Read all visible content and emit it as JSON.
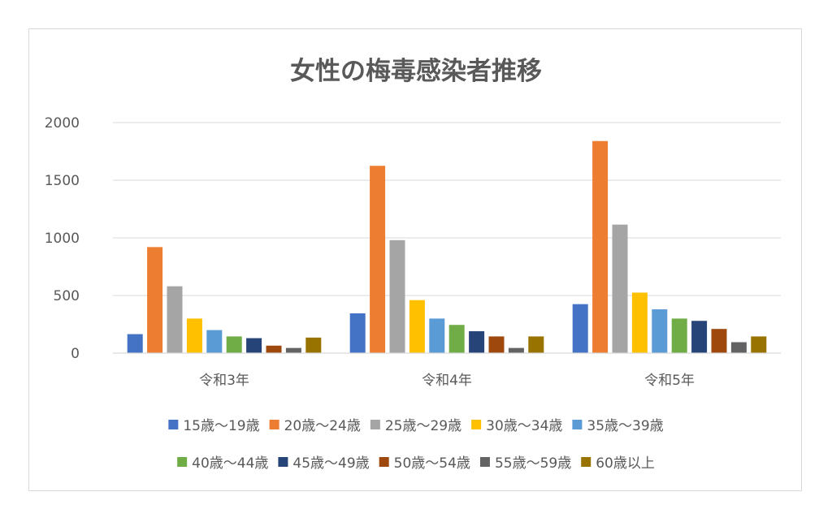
{
  "chart_data": {
    "type": "bar",
    "title": "女性の梅毒感染者推移",
    "xlabel": "",
    "ylabel": "",
    "ylim": [
      0,
      2000
    ],
    "yticks": [
      "0",
      "500",
      "1000",
      "1500",
      "2000"
    ],
    "grid": true,
    "legend_position": "bottom",
    "categories": [
      "令和3年",
      "令和4年",
      "令和5年"
    ],
    "series": [
      {
        "name": "15歳～19歳",
        "color": "#4472C4",
        "values": [
          165,
          345,
          425
        ]
      },
      {
        "name": "20歳～24歳",
        "color": "#ED7D31",
        "values": [
          920,
          1625,
          1840
        ]
      },
      {
        "name": "25歳～29歳",
        "color": "#A5A5A5",
        "values": [
          580,
          980,
          1115
        ]
      },
      {
        "name": "30歳～34歳",
        "color": "#FFC000",
        "values": [
          300,
          460,
          525
        ]
      },
      {
        "name": "35歳～39歳",
        "color": "#5B9BD5",
        "values": [
          200,
          300,
          380
        ]
      },
      {
        "name": "40歳～44歳",
        "color": "#70AD47",
        "values": [
          145,
          245,
          300
        ]
      },
      {
        "name": "45歳～49歳",
        "color": "#264478",
        "values": [
          130,
          190,
          280
        ]
      },
      {
        "name": "50歳～54歳",
        "color": "#9E480E",
        "values": [
          65,
          145,
          210
        ]
      },
      {
        "name": "55歳～59歳",
        "color": "#636363",
        "values": [
          45,
          45,
          95
        ]
      },
      {
        "name": "60歳以上",
        "color": "#997300",
        "values": [
          135,
          145,
          145
        ]
      }
    ]
  }
}
